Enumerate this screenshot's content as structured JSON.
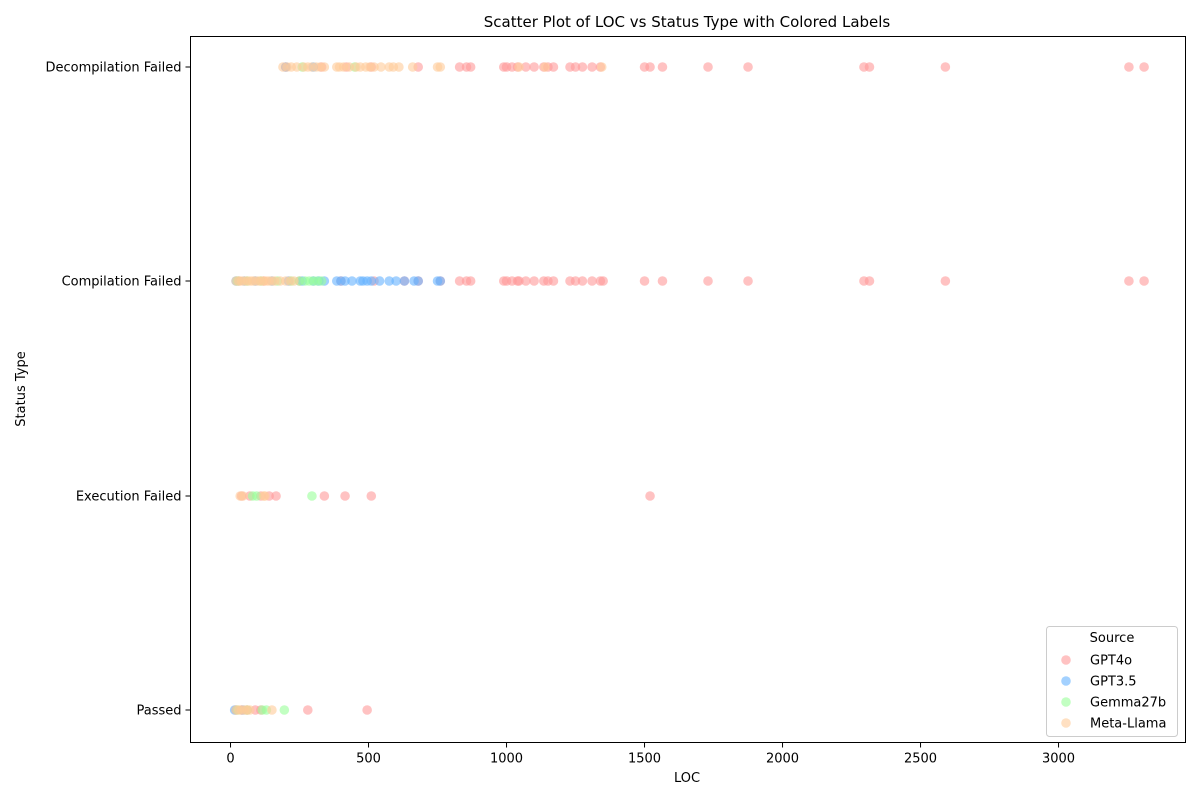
{
  "chart_data": {
    "type": "scatter",
    "title": "Scatter Plot of LOC vs Status Type with Colored Labels",
    "xlabel": "LOC",
    "ylabel": "Status Type",
    "xlim": [
      -145,
      3460
    ],
    "x_ticks": [
      0,
      500,
      1000,
      1500,
      2000,
      2500,
      3000
    ],
    "categories": [
      "Passed",
      "Execution Failed",
      "Compilation Failed",
      "Decompilation Failed"
    ],
    "grid": false,
    "legend": {
      "title": "Source",
      "position": "bottom-right"
    },
    "marker_alpha": 0.6,
    "series": [
      {
        "name": "GPT4o",
        "color": "#ff9999",
        "points": [
          {
            "x": 20,
            "y": "Passed"
          },
          {
            "x": 40,
            "y": "Passed"
          },
          {
            "x": 60,
            "y": "Passed"
          },
          {
            "x": 90,
            "y": "Passed"
          },
          {
            "x": 110,
            "y": "Passed"
          },
          {
            "x": 280,
            "y": "Passed"
          },
          {
            "x": 495,
            "y": "Passed"
          },
          {
            "x": 40,
            "y": "Execution Failed"
          },
          {
            "x": 70,
            "y": "Execution Failed"
          },
          {
            "x": 110,
            "y": "Execution Failed"
          },
          {
            "x": 140,
            "y": "Execution Failed"
          },
          {
            "x": 165,
            "y": "Execution Failed"
          },
          {
            "x": 340,
            "y": "Execution Failed"
          },
          {
            "x": 415,
            "y": "Execution Failed"
          },
          {
            "x": 510,
            "y": "Execution Failed"
          },
          {
            "x": 1520,
            "y": "Execution Failed"
          },
          {
            "x": 30,
            "y": "Compilation Failed"
          },
          {
            "x": 120,
            "y": "Compilation Failed"
          },
          {
            "x": 250,
            "y": "Compilation Failed"
          },
          {
            "x": 400,
            "y": "Compilation Failed"
          },
          {
            "x": 520,
            "y": "Compilation Failed"
          },
          {
            "x": 630,
            "y": "Compilation Failed"
          },
          {
            "x": 680,
            "y": "Compilation Failed"
          },
          {
            "x": 760,
            "y": "Compilation Failed"
          },
          {
            "x": 830,
            "y": "Compilation Failed"
          },
          {
            "x": 855,
            "y": "Compilation Failed"
          },
          {
            "x": 870,
            "y": "Compilation Failed"
          },
          {
            "x": 990,
            "y": "Compilation Failed"
          },
          {
            "x": 1000,
            "y": "Compilation Failed"
          },
          {
            "x": 1020,
            "y": "Compilation Failed"
          },
          {
            "x": 1040,
            "y": "Compilation Failed"
          },
          {
            "x": 1045,
            "y": "Compilation Failed"
          },
          {
            "x": 1070,
            "y": "Compilation Failed"
          },
          {
            "x": 1100,
            "y": "Compilation Failed"
          },
          {
            "x": 1135,
            "y": "Compilation Failed"
          },
          {
            "x": 1150,
            "y": "Compilation Failed"
          },
          {
            "x": 1170,
            "y": "Compilation Failed"
          },
          {
            "x": 1230,
            "y": "Compilation Failed"
          },
          {
            "x": 1250,
            "y": "Compilation Failed"
          },
          {
            "x": 1275,
            "y": "Compilation Failed"
          },
          {
            "x": 1310,
            "y": "Compilation Failed"
          },
          {
            "x": 1340,
            "y": "Compilation Failed"
          },
          {
            "x": 1350,
            "y": "Compilation Failed"
          },
          {
            "x": 1500,
            "y": "Compilation Failed"
          },
          {
            "x": 1565,
            "y": "Compilation Failed"
          },
          {
            "x": 1730,
            "y": "Compilation Failed"
          },
          {
            "x": 1875,
            "y": "Compilation Failed"
          },
          {
            "x": 2295,
            "y": "Compilation Failed"
          },
          {
            "x": 2315,
            "y": "Compilation Failed"
          },
          {
            "x": 2590,
            "y": "Compilation Failed"
          },
          {
            "x": 3255,
            "y": "Compilation Failed"
          },
          {
            "x": 3310,
            "y": "Compilation Failed"
          },
          {
            "x": 200,
            "y": "Decompilation Failed"
          },
          {
            "x": 330,
            "y": "Decompilation Failed"
          },
          {
            "x": 420,
            "y": "Decompilation Failed"
          },
          {
            "x": 510,
            "y": "Decompilation Failed"
          },
          {
            "x": 680,
            "y": "Decompilation Failed"
          },
          {
            "x": 830,
            "y": "Decompilation Failed"
          },
          {
            "x": 855,
            "y": "Decompilation Failed"
          },
          {
            "x": 870,
            "y": "Decompilation Failed"
          },
          {
            "x": 990,
            "y": "Decompilation Failed"
          },
          {
            "x": 1000,
            "y": "Decompilation Failed"
          },
          {
            "x": 1020,
            "y": "Decompilation Failed"
          },
          {
            "x": 1040,
            "y": "Decompilation Failed"
          },
          {
            "x": 1070,
            "y": "Decompilation Failed"
          },
          {
            "x": 1100,
            "y": "Decompilation Failed"
          },
          {
            "x": 1135,
            "y": "Decompilation Failed"
          },
          {
            "x": 1150,
            "y": "Decompilation Failed"
          },
          {
            "x": 1170,
            "y": "Decompilation Failed"
          },
          {
            "x": 1230,
            "y": "Decompilation Failed"
          },
          {
            "x": 1250,
            "y": "Decompilation Failed"
          },
          {
            "x": 1275,
            "y": "Decompilation Failed"
          },
          {
            "x": 1310,
            "y": "Decompilation Failed"
          },
          {
            "x": 1340,
            "y": "Decompilation Failed"
          },
          {
            "x": 1500,
            "y": "Decompilation Failed"
          },
          {
            "x": 1520,
            "y": "Decompilation Failed"
          },
          {
            "x": 1565,
            "y": "Decompilation Failed"
          },
          {
            "x": 1730,
            "y": "Decompilation Failed"
          },
          {
            "x": 1875,
            "y": "Decompilation Failed"
          },
          {
            "x": 2295,
            "y": "Decompilation Failed"
          },
          {
            "x": 2315,
            "y": "Decompilation Failed"
          },
          {
            "x": 2590,
            "y": "Decompilation Failed"
          },
          {
            "x": 3255,
            "y": "Decompilation Failed"
          },
          {
            "x": 3310,
            "y": "Decompilation Failed"
          }
        ]
      },
      {
        "name": "GPT3.5",
        "color": "#66b3ff",
        "points": [
          {
            "x": 15,
            "y": "Passed"
          },
          {
            "x": 45,
            "y": "Passed"
          },
          {
            "x": 20,
            "y": "Compilation Failed"
          },
          {
            "x": 50,
            "y": "Compilation Failed"
          },
          {
            "x": 90,
            "y": "Compilation Failed"
          },
          {
            "x": 150,
            "y": "Compilation Failed"
          },
          {
            "x": 210,
            "y": "Compilation Failed"
          },
          {
            "x": 260,
            "y": "Compilation Failed"
          },
          {
            "x": 300,
            "y": "Compilation Failed"
          },
          {
            "x": 320,
            "y": "Compilation Failed"
          },
          {
            "x": 340,
            "y": "Compilation Failed"
          },
          {
            "x": 385,
            "y": "Compilation Failed"
          },
          {
            "x": 400,
            "y": "Compilation Failed"
          },
          {
            "x": 415,
            "y": "Compilation Failed"
          },
          {
            "x": 440,
            "y": "Compilation Failed"
          },
          {
            "x": 470,
            "y": "Compilation Failed"
          },
          {
            "x": 480,
            "y": "Compilation Failed"
          },
          {
            "x": 495,
            "y": "Compilation Failed"
          },
          {
            "x": 510,
            "y": "Compilation Failed"
          },
          {
            "x": 540,
            "y": "Compilation Failed"
          },
          {
            "x": 575,
            "y": "Compilation Failed"
          },
          {
            "x": 600,
            "y": "Compilation Failed"
          },
          {
            "x": 630,
            "y": "Compilation Failed"
          },
          {
            "x": 665,
            "y": "Compilation Failed"
          },
          {
            "x": 680,
            "y": "Compilation Failed"
          },
          {
            "x": 750,
            "y": "Compilation Failed"
          },
          {
            "x": 760,
            "y": "Compilation Failed"
          },
          {
            "x": 200,
            "y": "Decompilation Failed"
          },
          {
            "x": 300,
            "y": "Decompilation Failed"
          }
        ]
      },
      {
        "name": "Gemma27b",
        "color": "#99ff99",
        "points": [
          {
            "x": 25,
            "y": "Passed"
          },
          {
            "x": 60,
            "y": "Passed"
          },
          {
            "x": 115,
            "y": "Passed"
          },
          {
            "x": 130,
            "y": "Passed"
          },
          {
            "x": 195,
            "y": "Passed"
          },
          {
            "x": 80,
            "y": "Execution Failed"
          },
          {
            "x": 95,
            "y": "Execution Failed"
          },
          {
            "x": 295,
            "y": "Execution Failed"
          },
          {
            "x": 25,
            "y": "Compilation Failed"
          },
          {
            "x": 60,
            "y": "Compilation Failed"
          },
          {
            "x": 110,
            "y": "Compilation Failed"
          },
          {
            "x": 170,
            "y": "Compilation Failed"
          },
          {
            "x": 220,
            "y": "Compilation Failed"
          },
          {
            "x": 250,
            "y": "Compilation Failed"
          },
          {
            "x": 270,
            "y": "Compilation Failed"
          },
          {
            "x": 285,
            "y": "Compilation Failed"
          },
          {
            "x": 300,
            "y": "Compilation Failed"
          },
          {
            "x": 315,
            "y": "Compilation Failed"
          },
          {
            "x": 330,
            "y": "Compilation Failed"
          },
          {
            "x": 260,
            "y": "Decompilation Failed"
          },
          {
            "x": 450,
            "y": "Decompilation Failed"
          }
        ]
      },
      {
        "name": "Meta-Llama",
        "color": "#ffcc99",
        "points": [
          {
            "x": 20,
            "y": "Passed"
          },
          {
            "x": 30,
            "y": "Passed"
          },
          {
            "x": 40,
            "y": "Passed"
          },
          {
            "x": 50,
            "y": "Passed"
          },
          {
            "x": 60,
            "y": "Passed"
          },
          {
            "x": 70,
            "y": "Passed"
          },
          {
            "x": 150,
            "y": "Passed"
          },
          {
            "x": 35,
            "y": "Execution Failed"
          },
          {
            "x": 45,
            "y": "Execution Failed"
          },
          {
            "x": 120,
            "y": "Execution Failed"
          },
          {
            "x": 125,
            "y": "Execution Failed"
          },
          {
            "x": 20,
            "y": "Compilation Failed"
          },
          {
            "x": 30,
            "y": "Compilation Failed"
          },
          {
            "x": 40,
            "y": "Compilation Failed"
          },
          {
            "x": 50,
            "y": "Compilation Failed"
          },
          {
            "x": 60,
            "y": "Compilation Failed"
          },
          {
            "x": 70,
            "y": "Compilation Failed"
          },
          {
            "x": 80,
            "y": "Compilation Failed"
          },
          {
            "x": 90,
            "y": "Compilation Failed"
          },
          {
            "x": 100,
            "y": "Compilation Failed"
          },
          {
            "x": 110,
            "y": "Compilation Failed"
          },
          {
            "x": 120,
            "y": "Compilation Failed"
          },
          {
            "x": 130,
            "y": "Compilation Failed"
          },
          {
            "x": 140,
            "y": "Compilation Failed"
          },
          {
            "x": 150,
            "y": "Compilation Failed"
          },
          {
            "x": 160,
            "y": "Compilation Failed"
          },
          {
            "x": 180,
            "y": "Compilation Failed"
          },
          {
            "x": 200,
            "y": "Compilation Failed"
          },
          {
            "x": 215,
            "y": "Compilation Failed"
          },
          {
            "x": 230,
            "y": "Compilation Failed"
          },
          {
            "x": 190,
            "y": "Decompilation Failed"
          },
          {
            "x": 205,
            "y": "Decompilation Failed"
          },
          {
            "x": 220,
            "y": "Decompilation Failed"
          },
          {
            "x": 240,
            "y": "Decompilation Failed"
          },
          {
            "x": 265,
            "y": "Decompilation Failed"
          },
          {
            "x": 280,
            "y": "Decompilation Failed"
          },
          {
            "x": 295,
            "y": "Decompilation Failed"
          },
          {
            "x": 310,
            "y": "Decompilation Failed"
          },
          {
            "x": 325,
            "y": "Decompilation Failed"
          },
          {
            "x": 340,
            "y": "Decompilation Failed"
          },
          {
            "x": 385,
            "y": "Decompilation Failed"
          },
          {
            "x": 395,
            "y": "Decompilation Failed"
          },
          {
            "x": 410,
            "y": "Decompilation Failed"
          },
          {
            "x": 430,
            "y": "Decompilation Failed"
          },
          {
            "x": 455,
            "y": "Decompilation Failed"
          },
          {
            "x": 470,
            "y": "Decompilation Failed"
          },
          {
            "x": 490,
            "y": "Decompilation Failed"
          },
          {
            "x": 505,
            "y": "Decompilation Failed"
          },
          {
            "x": 520,
            "y": "Decompilation Failed"
          },
          {
            "x": 545,
            "y": "Decompilation Failed"
          },
          {
            "x": 575,
            "y": "Decompilation Failed"
          },
          {
            "x": 590,
            "y": "Decompilation Failed"
          },
          {
            "x": 610,
            "y": "Decompilation Failed"
          },
          {
            "x": 660,
            "y": "Decompilation Failed"
          },
          {
            "x": 750,
            "y": "Decompilation Failed"
          },
          {
            "x": 760,
            "y": "Decompilation Failed"
          },
          {
            "x": 1045,
            "y": "Decompilation Failed"
          },
          {
            "x": 1140,
            "y": "Decompilation Failed"
          },
          {
            "x": 1345,
            "y": "Decompilation Failed"
          }
        ]
      }
    ]
  }
}
